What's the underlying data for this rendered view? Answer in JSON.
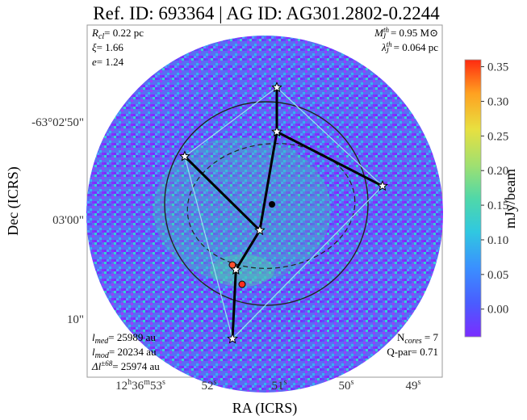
{
  "chart_data": {
    "type": "scatter",
    "title": "Ref. ID: 693364 | AG ID: AG301.2802-0.2244",
    "xlabel": "RA (ICRS)",
    "ylabel": "Dec (ICRS)",
    "colorbar_label": "mJy/beam",
    "colorbar_ticks": [
      "0.35",
      "0.30",
      "0.25",
      "0.20",
      "0.15",
      "0.10",
      "0.05",
      "0.00"
    ],
    "colorbar_range": [
      -0.04,
      0.36
    ],
    "x_ticks": [
      {
        "h": "12",
        "m": "36",
        "s": "53",
        "label_h": "h",
        "label_m": "m",
        "label_s": "s"
      },
      {
        "s": "52",
        "label_s": "s"
      },
      {
        "s": "51",
        "label_s": "s"
      },
      {
        "s": "50",
        "label_s": "s"
      },
      {
        "s": "49",
        "label_s": "s"
      }
    ],
    "y_ticks": [
      "-63°02'50\"",
      "03'00\"",
      "10\""
    ],
    "annotations_left_top": {
      "rcl_label": "R",
      "rcl_sub": "cl",
      "rcl_value": "= 0.22 pc",
      "xi_label": "ξ",
      "xi_value": "= 1.66",
      "e_label": "e",
      "e_value": "= 1.24"
    },
    "annotations_right_top": {
      "mj_label": "M",
      "mj_sup": "th",
      "mj_sub": "J",
      "mj_value": "= 0.95 M",
      "mj_unit": "⊙",
      "lj_label": "λ",
      "lj_sup": "th",
      "lj_sub": "J",
      "lj_value": "= 0.064 pc"
    },
    "annotations_left_bottom": {
      "lmed_label": "l",
      "lmed_sub": "med",
      "lmed_value": "= 25989 au",
      "lmod_label": "l",
      "lmod_sub": "mod",
      "lmod_value": "= 20234 au",
      "dl_label": "Δl",
      "dl_sup": "±68",
      "dl_value": "= 25974 au"
    },
    "annotations_right_bottom": {
      "ncores_label": "N",
      "ncores_sub": "cores",
      "ncores_value": " = 7",
      "qpar_text": "Q-par= 0.71"
    },
    "cores": [
      {
        "id": 1,
        "ra_s": 51.0,
        "dec_arcsec": 46.5
      },
      {
        "id": 2,
        "ra_s": 51.0,
        "dec_arcsec": 51.0
      },
      {
        "id": 3,
        "ra_s": 49.45,
        "dec_arcsec": 56.5
      },
      {
        "id": 4,
        "ra_s": 52.35,
        "dec_arcsec": 53.5
      },
      {
        "id": 5,
        "ra_s": 51.25,
        "dec_arcsec": 61.0
      },
      {
        "id": 6,
        "ra_s": 51.6,
        "dec_arcsec": 65.0
      },
      {
        "id": 7,
        "ra_s": 51.65,
        "dec_arcsec": 72.0
      }
    ],
    "mst_edges": [
      [
        1,
        2
      ],
      [
        2,
        3
      ],
      [
        2,
        5
      ],
      [
        4,
        5
      ],
      [
        5,
        6
      ],
      [
        6,
        7
      ]
    ],
    "hull": [
      1,
      3,
      7,
      4,
      1
    ],
    "colors": {
      "min": "#7b2cff",
      "mid": "#40c8b8",
      "high": "#ffe040",
      "max": "#ff2a10"
    }
  }
}
